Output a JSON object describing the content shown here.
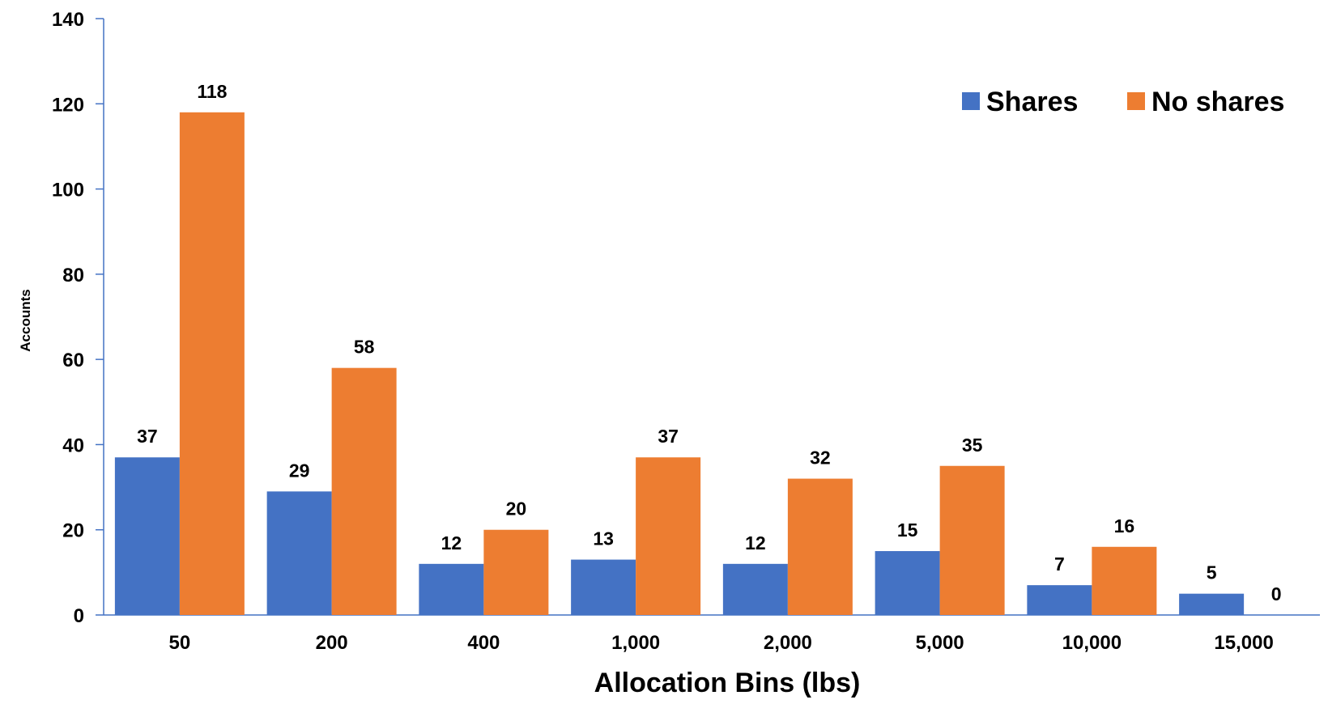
{
  "chart_data": {
    "type": "bar",
    "xlabel": "Allocation Bins (lbs)",
    "ylabel": "Accounts",
    "categories": [
      "50",
      "200",
      "400",
      "1,000",
      "2,000",
      "5,000",
      "10,000",
      "15,000"
    ],
    "series": [
      {
        "name": "Shares",
        "color": "#4472C4",
        "values": [
          37,
          29,
          12,
          13,
          12,
          15,
          7,
          5
        ]
      },
      {
        "name": "No shares",
        "color": "#ED7D31",
        "values": [
          118,
          58,
          20,
          37,
          32,
          35,
          16,
          0
        ]
      }
    ],
    "ylim": [
      0,
      140
    ],
    "yticks": [
      "0",
      "20",
      "40",
      "60",
      "80",
      "100",
      "120",
      "140"
    ],
    "grid": false,
    "legend_position": "top-right",
    "axis_color": "#4472C4"
  }
}
